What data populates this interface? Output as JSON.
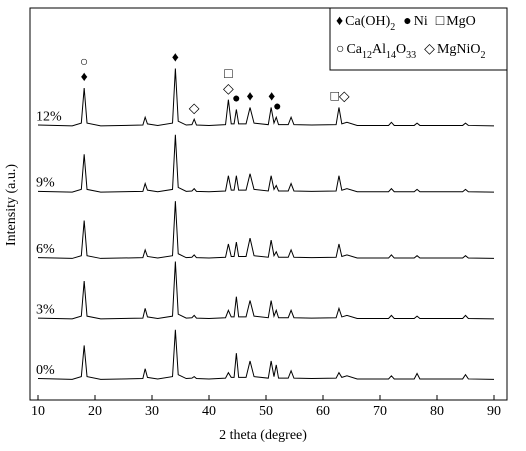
{
  "chart_data": {
    "type": "line",
    "xlabel": "2 theta (degree)",
    "ylabel": "Intensity (a.u.)",
    "xlim": [
      10,
      90
    ],
    "xticks": [
      10,
      20,
      30,
      40,
      50,
      60,
      70,
      80,
      90
    ],
    "ylim": [
      0,
      100
    ],
    "x": [
      10,
      16,
      17.6,
      18.1,
      18.6,
      21,
      28.4,
      28.8,
      29.2,
      31,
      33.6,
      34.1,
      34.6,
      36,
      37.0,
      37.4,
      37.8,
      40,
      42.9,
      43.4,
      43.9,
      44.4,
      44.8,
      45.2,
      46.5,
      47.2,
      47.9,
      50.4,
      50.9,
      51.4,
      51.8,
      52.2,
      53.9,
      54.4,
      54.9,
      58,
      62.3,
      62.8,
      63.3,
      64.2,
      66,
      71.5,
      72,
      72.5,
      76,
      76.5,
      77,
      79,
      84.5,
      85,
      85.5,
      90
    ],
    "series": [
      {
        "name": "0%",
        "color": "#000000",
        "values": [
          5.5,
          5.3,
          6,
          14,
          6,
          5.3,
          5.5,
          8,
          5.8,
          5.4,
          6,
          18,
          6.5,
          5.5,
          5.6,
          6,
          5.5,
          5.4,
          5.6,
          7,
          5.8,
          5.8,
          12,
          5.8,
          5.8,
          10,
          6,
          5.6,
          10,
          6,
          9,
          5.6,
          5.6,
          7.5,
          5.6,
          5.5,
          5.6,
          7,
          5.8,
          6.2,
          5.4,
          5.4,
          6.2,
          5.4,
          5.4,
          6.8,
          5.4,
          5.4,
          5.4,
          6.5,
          5.4,
          5.3
        ]
      },
      {
        "name": "3%",
        "color": "#000000",
        "values": [
          21,
          20.8,
          21.5,
          30.5,
          21.5,
          20.8,
          21,
          23.5,
          21.3,
          20.9,
          21.5,
          35.5,
          22,
          21,
          21.1,
          21.7,
          21,
          20.9,
          21.1,
          23,
          21.3,
          21.3,
          26.5,
          21.3,
          21.3,
          25.5,
          21.5,
          21.1,
          25.5,
          21.5,
          23,
          21.1,
          21.1,
          23,
          21.1,
          21,
          21.1,
          23.5,
          21.3,
          21.7,
          20.9,
          20.9,
          21.7,
          20.9,
          20.9,
          21.5,
          20.9,
          20.9,
          20.9,
          21.7,
          20.9,
          20.8
        ]
      },
      {
        "name": "6%",
        "color": "#000000",
        "values": [
          36.5,
          36.3,
          37,
          46,
          37,
          36.3,
          36.5,
          38.5,
          36.8,
          36.4,
          37,
          51,
          37.5,
          36.5,
          36.6,
          37.2,
          36.5,
          36.4,
          36.6,
          40,
          36.8,
          36.8,
          40.5,
          36.8,
          36.8,
          41.5,
          37,
          36.6,
          41,
          37,
          38,
          36.6,
          36.6,
          38.5,
          36.6,
          36.5,
          36.6,
          40,
          36.8,
          37.2,
          36.4,
          36.4,
          37.2,
          36.4,
          36.4,
          37,
          36.4,
          36.4,
          36.4,
          37,
          36.4,
          36.3
        ]
      },
      {
        "name": "9%",
        "color": "#000000",
        "values": [
          53.5,
          53.3,
          54,
          63,
          54,
          53.3,
          53.5,
          55.5,
          53.8,
          53.4,
          54,
          68,
          54.5,
          53.5,
          53.6,
          54.2,
          53.5,
          53.4,
          53.6,
          57.5,
          53.8,
          53.8,
          57.5,
          53.8,
          53.8,
          58,
          54,
          53.6,
          57.5,
          54,
          55,
          53.6,
          53.6,
          55.5,
          53.6,
          53.5,
          53.6,
          57.5,
          53.8,
          54.2,
          53.4,
          53.4,
          54.2,
          53.4,
          53.4,
          54,
          53.4,
          53.4,
          53.4,
          54,
          53.4,
          53.3
        ]
      },
      {
        "name": "12%",
        "color": "#000000",
        "values": [
          70.5,
          70.3,
          71,
          80,
          71,
          70.3,
          70.5,
          72.5,
          70.8,
          70.4,
          71,
          85,
          71.5,
          70.5,
          70.6,
          72,
          70.5,
          70.4,
          70.6,
          77,
          70.8,
          70.8,
          74.5,
          70.8,
          70.8,
          75,
          71,
          70.6,
          75,
          71,
          72.5,
          70.6,
          70.6,
          72.5,
          70.6,
          70.5,
          70.6,
          75,
          70.8,
          71.2,
          70.4,
          70.4,
          71.2,
          70.4,
          70.4,
          71,
          70.4,
          70.4,
          70.4,
          71,
          70.4,
          70.3
        ]
      }
    ],
    "legend_rows": [
      [
        {
          "symbol": "♦",
          "label": "Ca(OH)2"
        },
        {
          "symbol": "●",
          "label": "Ni"
        },
        {
          "symbol": "□",
          "label": "MgO"
        }
      ],
      [
        {
          "symbol": "○",
          "label": "Ca12Al14O33"
        },
        {
          "symbol": "◇",
          "label": "MgNiO2"
        }
      ]
    ],
    "peak_markers": [
      {
        "x": 18.1,
        "symbols": [
          "♦",
          "○"
        ]
      },
      {
        "x": 34.1,
        "symbols": [
          "♦"
        ]
      },
      {
        "x": 37.4,
        "symbols": [
          "◇"
        ]
      },
      {
        "x": 43.4,
        "symbols": [
          "◇",
          "□"
        ]
      },
      {
        "x": 44.8,
        "symbols": [
          "●"
        ]
      },
      {
        "x": 47.2,
        "symbols": [
          "♦"
        ]
      },
      {
        "x": 51.0,
        "symbols": [
          "♦"
        ]
      },
      {
        "x": 52.0,
        "symbols": [
          "●"
        ]
      },
      {
        "x": 63.0,
        "symbols": [
          "□◇"
        ]
      }
    ]
  }
}
